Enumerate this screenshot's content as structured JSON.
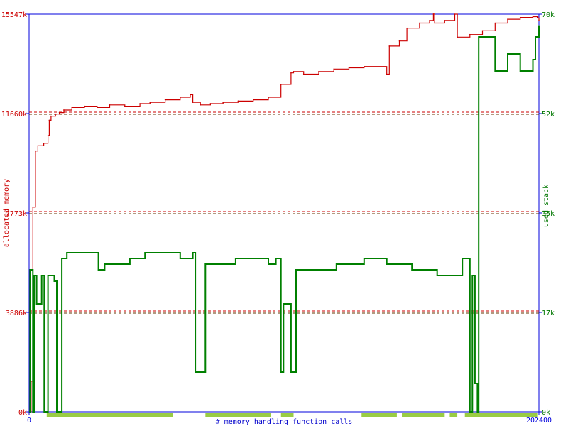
{
  "chart_data": {
    "type": "line",
    "xlabel": "# memory handling function calls",
    "ylabel_left": "allocated memory",
    "ylabel_right": "used stack",
    "x_range": [
      0,
      202400
    ],
    "x_ticks": [
      "0",
      "202400"
    ],
    "y_left_range_k": [
      0,
      15547
    ],
    "y_left_ticks": [
      "0k",
      "3886k",
      "7773k",
      "11660k",
      "15547k"
    ],
    "y_right_range_k": [
      0,
      70
    ],
    "y_right_ticks": [
      "0k",
      "17k",
      "35k",
      "52k",
      "70k"
    ],
    "grid": "dashed horizontal at 25/50/75 percent",
    "colors": {
      "axis": "#0000dd",
      "left_axis_text": "#cc0000",
      "right_axis_text": "#007700",
      "allocated": "#cc0000",
      "stack": "#008000",
      "gridline_dark": "#663300",
      "gridline_red": "#cc0000",
      "activity_band": "#99cc44",
      "xlabel": "#0000cc"
    },
    "series": [
      {
        "key": "allocated",
        "unit": "k",
        "points": [
          [
            0,
            0
          ],
          [
            800,
            1200
          ],
          [
            1500,
            8000
          ],
          [
            2500,
            10200
          ],
          [
            3500,
            10400
          ],
          [
            5800,
            10500
          ],
          [
            7500,
            10800
          ],
          [
            8000,
            11400
          ],
          [
            8700,
            11560
          ],
          [
            10500,
            11640
          ],
          [
            12000,
            11700
          ],
          [
            13800,
            11800
          ],
          [
            17000,
            11900
          ],
          [
            22000,
            11950
          ],
          [
            27000,
            11900
          ],
          [
            32000,
            12000
          ],
          [
            38000,
            11950
          ],
          [
            44000,
            12050
          ],
          [
            48000,
            12100
          ],
          [
            54000,
            12200
          ],
          [
            60000,
            12300
          ],
          [
            64000,
            12400
          ],
          [
            65000,
            12100
          ],
          [
            68000,
            12000
          ],
          [
            72000,
            12050
          ],
          [
            77000,
            12100
          ],
          [
            83000,
            12150
          ],
          [
            89000,
            12200
          ],
          [
            95000,
            12300
          ],
          [
            100000,
            12800
          ],
          [
            104000,
            13250
          ],
          [
            105000,
            13300
          ],
          [
            109000,
            13200
          ],
          [
            115000,
            13300
          ],
          [
            121000,
            13400
          ],
          [
            127000,
            13450
          ],
          [
            133000,
            13500
          ],
          [
            142000,
            13200
          ],
          [
            143000,
            14300
          ],
          [
            147000,
            14500
          ],
          [
            150000,
            15000
          ],
          [
            155000,
            15200
          ],
          [
            159000,
            15300
          ],
          [
            160500,
            15550
          ],
          [
            161000,
            15200
          ],
          [
            165000,
            15300
          ],
          [
            169000,
            15547
          ],
          [
            170000,
            14650
          ],
          [
            175000,
            14750
          ],
          [
            180000,
            14900
          ],
          [
            185000,
            15200
          ],
          [
            190000,
            15350
          ],
          [
            195000,
            15420
          ],
          [
            200000,
            15450
          ],
          [
            202000,
            15400
          ],
          [
            202400,
            15300
          ]
        ]
      },
      {
        "key": "stack",
        "unit": "k",
        "points": [
          [
            0,
            0
          ],
          [
            400,
            25
          ],
          [
            1000,
            25
          ],
          [
            1500,
            0
          ],
          [
            2000,
            24
          ],
          [
            3000,
            19
          ],
          [
            5000,
            24
          ],
          [
            6000,
            0
          ],
          [
            7500,
            24
          ],
          [
            10000,
            23
          ],
          [
            11000,
            0
          ],
          [
            13000,
            27
          ],
          [
            15000,
            28
          ],
          [
            25000,
            28
          ],
          [
            27500,
            25
          ],
          [
            30000,
            26
          ],
          [
            38000,
            26
          ],
          [
            40000,
            27
          ],
          [
            45000,
            27
          ],
          [
            46000,
            28
          ],
          [
            60000,
            27
          ],
          [
            65000,
            28
          ],
          [
            66000,
            7
          ],
          [
            70000,
            26
          ],
          [
            75000,
            26
          ],
          [
            82000,
            27
          ],
          [
            88000,
            27
          ],
          [
            95000,
            26
          ],
          [
            98000,
            27
          ],
          [
            100000,
            7
          ],
          [
            101000,
            19
          ],
          [
            104000,
            7
          ],
          [
            106000,
            25
          ],
          [
            110000,
            25
          ],
          [
            118000,
            25
          ],
          [
            122000,
            26
          ],
          [
            130000,
            26
          ],
          [
            133000,
            27
          ],
          [
            140000,
            27
          ],
          [
            142000,
            26
          ],
          [
            150000,
            26
          ],
          [
            152000,
            25
          ],
          [
            160000,
            25
          ],
          [
            162000,
            24
          ],
          [
            170000,
            24
          ],
          [
            172000,
            27
          ],
          [
            175000,
            0
          ],
          [
            176000,
            24
          ],
          [
            177000,
            5
          ],
          [
            178000,
            0
          ],
          [
            178500,
            66
          ],
          [
            182000,
            66
          ],
          [
            185000,
            60
          ],
          [
            190000,
            63
          ],
          [
            195000,
            60
          ],
          [
            200000,
            62
          ],
          [
            201000,
            66
          ],
          [
            202400,
            68
          ]
        ]
      }
    ],
    "activity_bands": [
      [
        7000,
        57000
      ],
      [
        70000,
        96000
      ],
      [
        100000,
        105000
      ],
      [
        132000,
        146000
      ],
      [
        148000,
        165000
      ],
      [
        167000,
        170000
      ],
      [
        173000,
        202000
      ]
    ]
  }
}
